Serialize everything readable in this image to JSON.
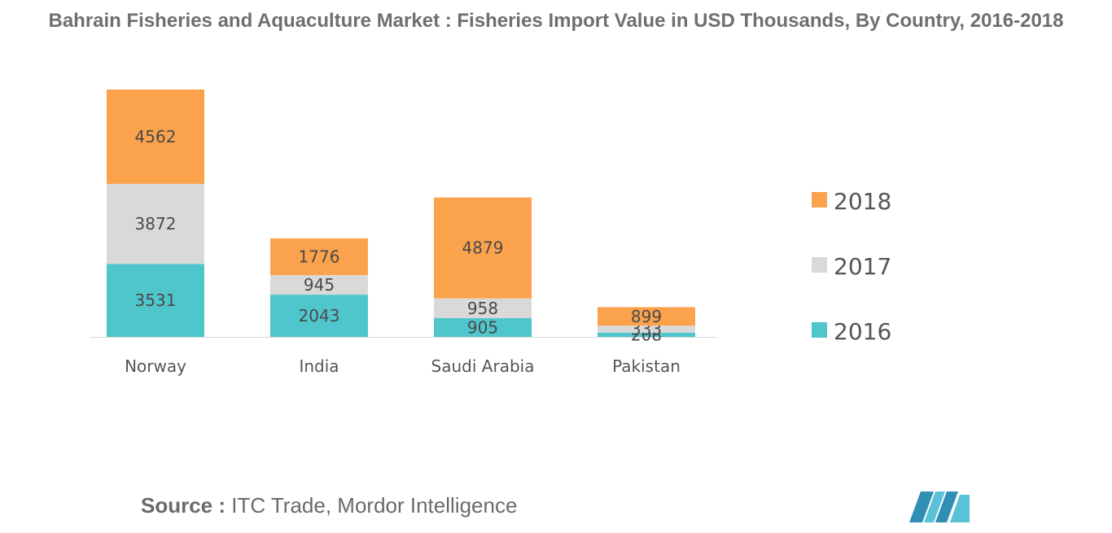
{
  "chart_title": "Bahrain Fisheries and Aquaculture Market : Fisheries Import Value in USD Thousands, By Country, 2016-2018",
  "source": {
    "label": "Source :",
    "text": " ITC Trade, Mordor Intelligence"
  },
  "colors": {
    "2016": "#4fc6cb",
    "2017": "#d9d9d9",
    "2018": "#fba24c",
    "text": "#4a4a4a",
    "axis": "#d6d6d6"
  },
  "logo": {
    "icon": "mordor-intelligence-logo-icon"
  },
  "chart_data": {
    "type": "bar",
    "stacked": true,
    "title": "Bahrain Fisheries and Aquaculture Market : Fisheries Import Value in USD Thousands, By Country, 2016-2018",
    "categories": [
      "Norway",
      "India",
      "Saudi Arabia",
      "Pakistan"
    ],
    "series": [
      {
        "name": "2016",
        "values": [
          3531,
          2043,
          905,
          208
        ]
      },
      {
        "name": "2017",
        "values": [
          3872,
          945,
          958,
          333
        ]
      },
      {
        "name": "2018",
        "values": [
          4562,
          1776,
          4879,
          899
        ]
      }
    ],
    "legend_order": [
      "2018",
      "2017",
      "2016"
    ],
    "legend_position": "right",
    "y_axis_visible": false,
    "grid": false,
    "ylim": [
      0,
      11965
    ]
  }
}
